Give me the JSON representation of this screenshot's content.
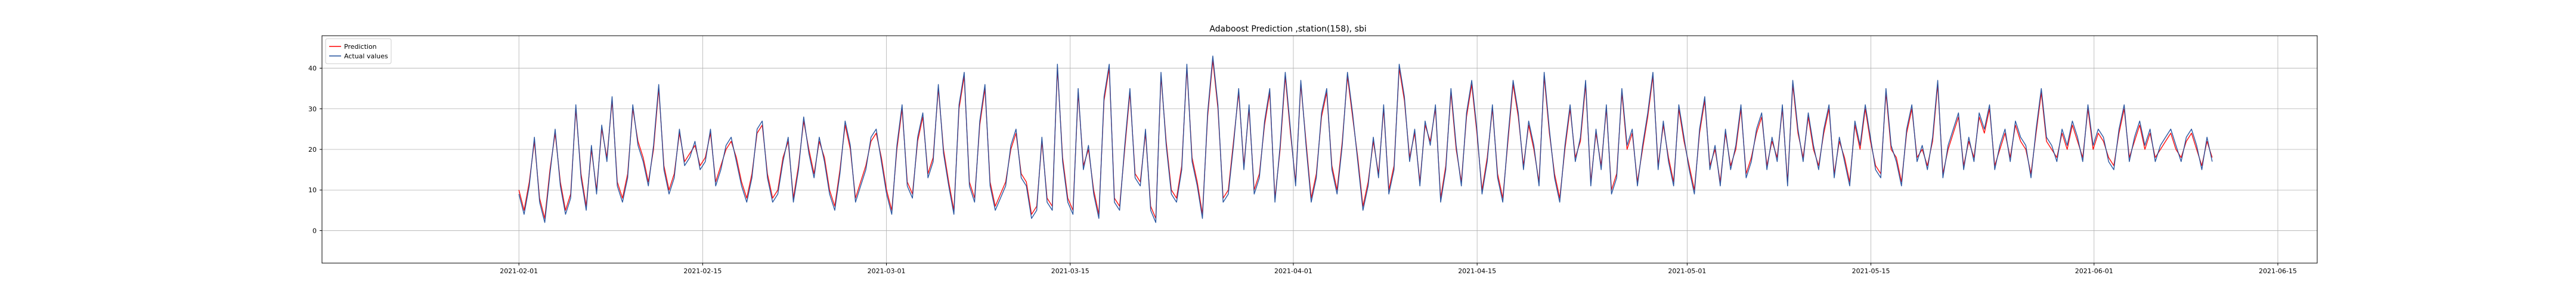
{
  "chart_data": {
    "type": "line",
    "title": "Adaboost Prediction ,station(158), sbi",
    "xlabel": "",
    "ylabel": "",
    "x_range": [
      "2021-01-17",
      "2021-06-18"
    ],
    "x_ticks": [
      "2021-02-01",
      "2021-02-15",
      "2021-03-01",
      "2021-03-15",
      "2021-04-01",
      "2021-04-15",
      "2021-05-01",
      "2021-05-15",
      "2021-06-01",
      "2021-06-15"
    ],
    "ylim": [
      -8,
      48
    ],
    "y_ticks": [
      0,
      10,
      20,
      30,
      40
    ],
    "grid": true,
    "legend_position": "top-left",
    "x_start": "2021-02-01",
    "x_end": "2021-06-10",
    "series": [
      {
        "name": "Prediction",
        "color": "#ff0000",
        "values": [
          10,
          5,
          12,
          22,
          8,
          3,
          15,
          24,
          12,
          5,
          9,
          30,
          14,
          6,
          20,
          10,
          25,
          18,
          32,
          12,
          8,
          14,
          30,
          22,
          18,
          12,
          20,
          35,
          16,
          10,
          14,
          24,
          17,
          19,
          21,
          16,
          18,
          24,
          12,
          16,
          20,
          22,
          18,
          12,
          8,
          14,
          24,
          26,
          14,
          8,
          10,
          18,
          22,
          8,
          16,
          27,
          20,
          14,
          22,
          18,
          10,
          6,
          15,
          26,
          20,
          8,
          12,
          16,
          22,
          24,
          18,
          10,
          5,
          20,
          30,
          12,
          9,
          22,
          28,
          14,
          18,
          35,
          20,
          12,
          5,
          30,
          38,
          12,
          8,
          26,
          35,
          12,
          6,
          9,
          12,
          20,
          24,
          14,
          12,
          4,
          6,
          22,
          8,
          6,
          40,
          18,
          8,
          5,
          34,
          16,
          20,
          10,
          4,
          32,
          40,
          8,
          6,
          20,
          34,
          14,
          12,
          24,
          6,
          3,
          38,
          22,
          10,
          8,
          16,
          40,
          18,
          12,
          4,
          28,
          42,
          30,
          8,
          10,
          22,
          34,
          16,
          30,
          10,
          14,
          26,
          34,
          8,
          20,
          38,
          24,
          12,
          36,
          22,
          8,
          14,
          28,
          34,
          16,
          10,
          22,
          38,
          28,
          18,
          6,
          12,
          22,
          14,
          30,
          10,
          16,
          40,
          32,
          18,
          24,
          12,
          26,
          22,
          30,
          8,
          16,
          34,
          20,
          12,
          28,
          36,
          24,
          10,
          18,
          30,
          14,
          8,
          22,
          36,
          28,
          16,
          26,
          20,
          12,
          38,
          24,
          14,
          8,
          20,
          30,
          18,
          22,
          36,
          12,
          24,
          16,
          30,
          10,
          14,
          34,
          20,
          24,
          12,
          20,
          28,
          38,
          16,
          26,
          18,
          12,
          30,
          22,
          16,
          10,
          24,
          32,
          16,
          20,
          12,
          24,
          16,
          20,
          30,
          14,
          18,
          24,
          28,
          16,
          22,
          18,
          30,
          12,
          36,
          24,
          18,
          28,
          20,
          16,
          24,
          30,
          14,
          22,
          18,
          12,
          26,
          20,
          30,
          22,
          16,
          14,
          34,
          20,
          18,
          12,
          24,
          30,
          18,
          20,
          16,
          22,
          36,
          14,
          20,
          24,
          28,
          16,
          22,
          18,
          28,
          24,
          30,
          16,
          20,
          24,
          18,
          26,
          22,
          20,
          14,
          24,
          34,
          22,
          20,
          18,
          24,
          20,
          26,
          22,
          18,
          30,
          20,
          24,
          22,
          18,
          16,
          24,
          30,
          18,
          22,
          26,
          20,
          24,
          18,
          20,
          22,
          24,
          20,
          18,
          22,
          24,
          20,
          16,
          22,
          18
        ]
      },
      {
        "name": "Actual values",
        "color": "#1f4e9c",
        "values": [
          9,
          4,
          11,
          23,
          7,
          2,
          14,
          25,
          11,
          4,
          8,
          31,
          13,
          5,
          21,
          9,
          26,
          17,
          33,
          11,
          7,
          13,
          31,
          21,
          17,
          11,
          21,
          36,
          15,
          9,
          13,
          25,
          16,
          18,
          22,
          15,
          17,
          25,
          11,
          15,
          21,
          23,
          17,
          11,
          7,
          13,
          25,
          27,
          13,
          7,
          9,
          17,
          23,
          7,
          15,
          28,
          19,
          13,
          23,
          17,
          9,
          5,
          14,
          27,
          21,
          7,
          11,
          15,
          23,
          25,
          17,
          9,
          4,
          21,
          31,
          11,
          8,
          23,
          29,
          13,
          17,
          36,
          19,
          11,
          4,
          31,
          39,
          11,
          7,
          27,
          36,
          11,
          5,
          8,
          11,
          21,
          25,
          13,
          11,
          3,
          5,
          23,
          7,
          5,
          41,
          17,
          7,
          4,
          35,
          15,
          21,
          9,
          3,
          33,
          41,
          7,
          5,
          21,
          35,
          13,
          11,
          25,
          5,
          2,
          39,
          21,
          9,
          7,
          15,
          41,
          17,
          11,
          3,
          29,
          43,
          31,
          7,
          9,
          21,
          35,
          15,
          31,
          9,
          13,
          27,
          35,
          7,
          21,
          39,
          25,
          11,
          37,
          21,
          7,
          13,
          29,
          35,
          15,
          9,
          21,
          39,
          29,
          17,
          5,
          11,
          23,
          13,
          31,
          9,
          15,
          41,
          33,
          17,
          25,
          11,
          27,
          21,
          31,
          7,
          15,
          35,
          21,
          11,
          29,
          37,
          25,
          9,
          17,
          31,
          13,
          7,
          23,
          37,
          29,
          15,
          27,
          21,
          11,
          39,
          25,
          13,
          7,
          21,
          31,
          17,
          23,
          37,
          11,
          25,
          15,
          31,
          9,
          13,
          35,
          21,
          25,
          11,
          21,
          29,
          39,
          15,
          27,
          17,
          11,
          31,
          23,
          15,
          9,
          25,
          33,
          15,
          21,
          11,
          25,
          15,
          21,
          31,
          13,
          17,
          25,
          29,
          15,
          23,
          17,
          31,
          11,
          37,
          25,
          17,
          29,
          21,
          15,
          25,
          31,
          13,
          23,
          17,
          11,
          27,
          21,
          31,
          23,
          15,
          13,
          35,
          21,
          17,
          11,
          25,
          31,
          17,
          21,
          15,
          23,
          37,
          13,
          21,
          25,
          29,
          15,
          23,
          17,
          29,
          25,
          31,
          15,
          21,
          25,
          17,
          27,
          23,
          21,
          13,
          25,
          35,
          23,
          21,
          17,
          25,
          21,
          27,
          23,
          17,
          31,
          21,
          25,
          23,
          17,
          15,
          25,
          31,
          17,
          23,
          27,
          21,
          25,
          17,
          21,
          23,
          25,
          21,
          17,
          23,
          25,
          21,
          15,
          23,
          17
        ]
      }
    ]
  }
}
